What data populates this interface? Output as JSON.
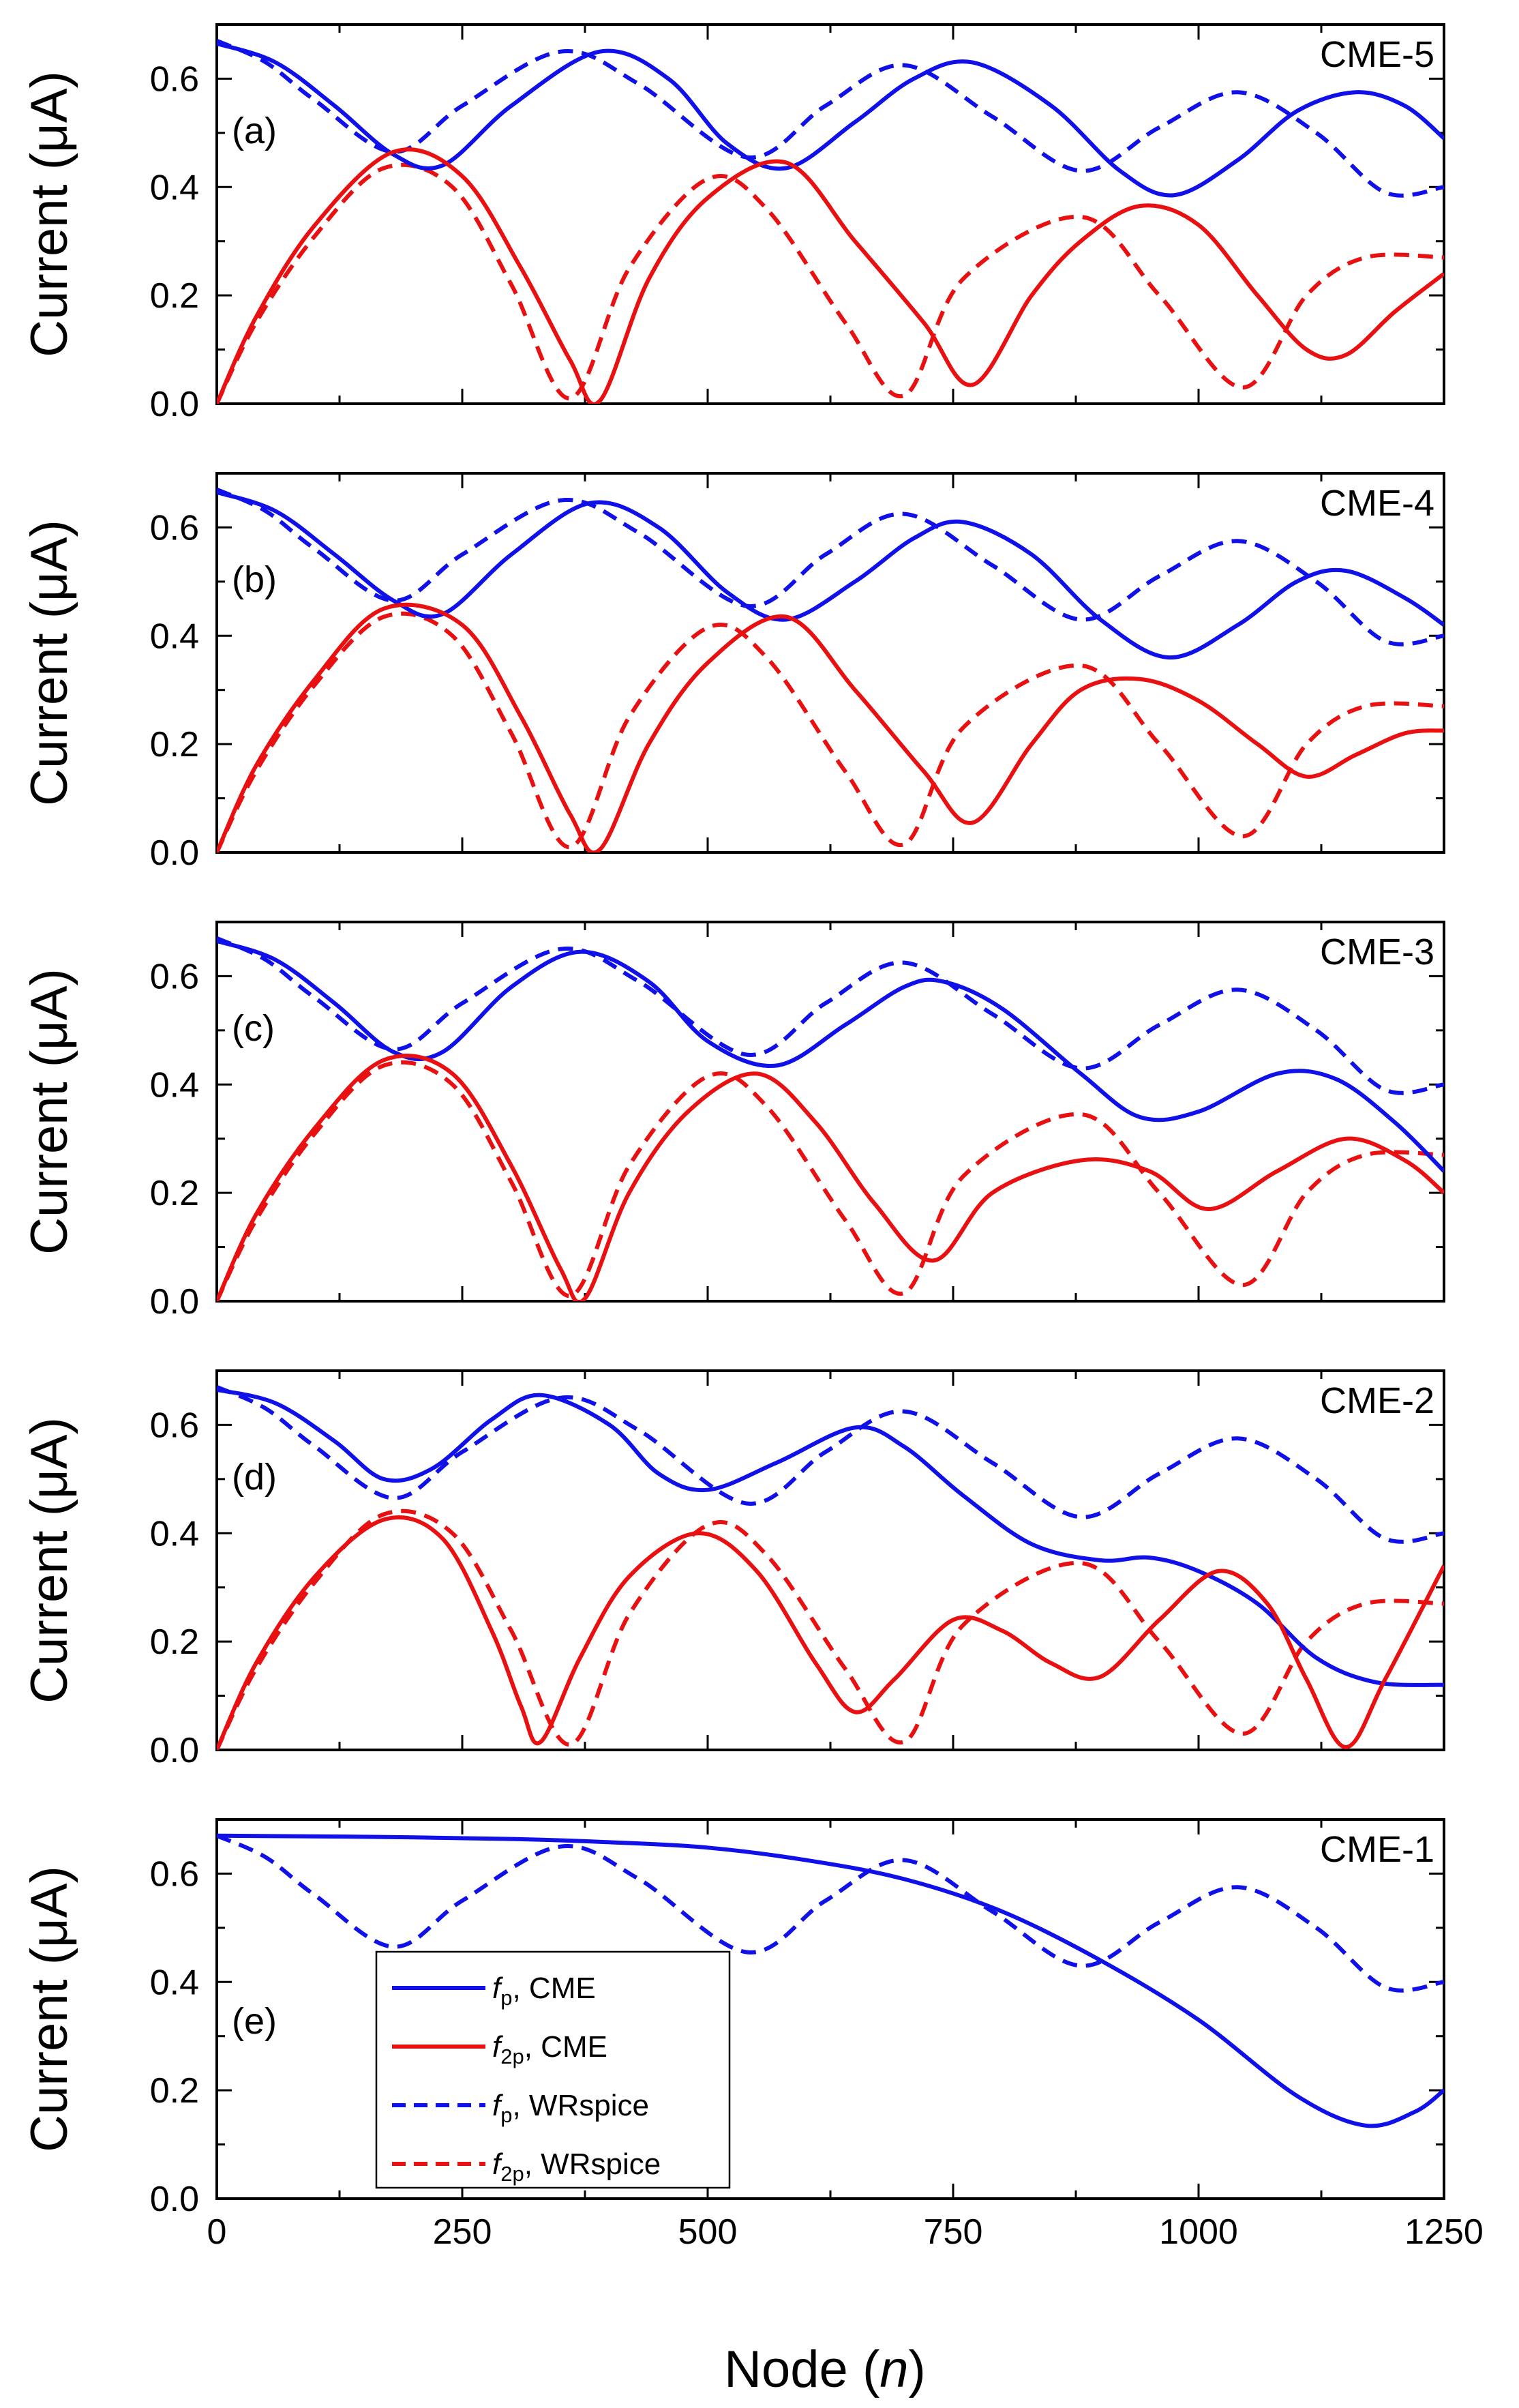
{
  "chart_data": {
    "type": "line",
    "xlabel": "Node (n)",
    "xlabel_main": "Node (",
    "xlabel_var": "n",
    "xlabel_close": ")",
    "ylabel": "Current (μA)",
    "xlim": [
      0,
      1250
    ],
    "ylim": [
      0,
      0.7
    ],
    "xticks": [
      "0",
      "250",
      "500",
      "750",
      "1000",
      "1250"
    ],
    "yticks": [
      "0.0",
      "0.2",
      "0.4",
      "0.6"
    ],
    "legend": [
      {
        "var": "f",
        "sub": "p",
        "rest": ", CME",
        "color": "#1010e8",
        "dash": false
      },
      {
        "var": "f",
        "sub": "2p",
        "rest": ", CME",
        "color": "#e81010",
        "dash": false
      },
      {
        "var": "f",
        "sub": "p",
        "rest": ", WRspice",
        "color": "#1010e8",
        "dash": true
      },
      {
        "var": "f",
        "sub": "2p",
        "rest": ", WRspice",
        "color": "#e81010",
        "dash": true
      }
    ],
    "reference": {
      "fp_wrspice": {
        "x": [
          0,
          50,
          100,
          180,
          250,
          350,
          430,
          540,
          620,
          700,
          790,
          880,
          960,
          1040,
          1120,
          1190,
          1250
        ],
        "y": [
          0.67,
          0.63,
          0.56,
          0.465,
          0.55,
          0.65,
          0.59,
          0.455,
          0.55,
          0.625,
          0.53,
          0.43,
          0.51,
          0.575,
          0.5,
          0.39,
          0.4
        ]
      },
      "f2p_wrspice": {
        "x": [
          0,
          40,
          100,
          170,
          240,
          300,
          360,
          420,
          500,
          560,
          640,
          700,
          760,
          880,
          960,
          1045,
          1110,
          1170,
          1250
        ],
        "y": [
          0.0,
          0.15,
          0.31,
          0.435,
          0.4,
          0.22,
          0.01,
          0.25,
          0.415,
          0.36,
          0.15,
          0.015,
          0.23,
          0.345,
          0.2,
          0.03,
          0.2,
          0.27,
          0.27
        ]
      }
    },
    "panels": [
      {
        "label": "CME-5",
        "tag": "(a)",
        "series": [
          {
            "name": "fp, CME",
            "x": [
              0,
              60,
              120,
              180,
              230,
              300,
              390,
              460,
              520,
              580,
              650,
              710,
              770,
              850,
              920,
              975,
              1040,
              1100,
              1160,
              1210,
              1250
            ],
            "y": [
              0.665,
              0.63,
              0.55,
              0.46,
              0.44,
              0.55,
              0.65,
              0.6,
              0.48,
              0.435,
              0.52,
              0.6,
              0.63,
              0.55,
              0.43,
              0.385,
              0.45,
              0.54,
              0.575,
              0.55,
              0.49
            ]
          },
          {
            "name": "f2p, CME",
            "x": [
              0,
              40,
              100,
              180,
              250,
              310,
              360,
              390,
              440,
              500,
              580,
              650,
              720,
              770,
              830,
              880,
              940,
              1000,
              1060,
              1110,
              1150,
              1200,
              1250
            ],
            "y": [
              0.0,
              0.16,
              0.33,
              0.465,
              0.42,
              0.25,
              0.08,
              0.005,
              0.23,
              0.38,
              0.445,
              0.3,
              0.15,
              0.035,
              0.2,
              0.3,
              0.365,
              0.33,
              0.2,
              0.1,
              0.09,
              0.17,
              0.24
            ]
          }
        ]
      },
      {
        "label": "CME-4",
        "tag": "(b)",
        "series": [
          {
            "name": "fp, CME",
            "x": [
              0,
              60,
              120,
              180,
              230,
              300,
              380,
              450,
              520,
              580,
              650,
              710,
              760,
              830,
              900,
              970,
              1040,
              1100,
              1150,
              1210,
              1250
            ],
            "y": [
              0.665,
              0.63,
              0.55,
              0.465,
              0.44,
              0.55,
              0.645,
              0.6,
              0.48,
              0.43,
              0.5,
              0.58,
              0.61,
              0.55,
              0.43,
              0.36,
              0.42,
              0.5,
              0.52,
              0.47,
              0.42
            ]
          },
          {
            "name": "f2p, CME",
            "x": [
              0,
              40,
              100,
              170,
              250,
              310,
              360,
              390,
              440,
              500,
              580,
              650,
              720,
              770,
              830,
              880,
              940,
              1000,
              1060,
              1110,
              1160,
              1210,
              1250
            ],
            "y": [
              0.0,
              0.16,
              0.32,
              0.45,
              0.42,
              0.25,
              0.07,
              0.005,
              0.2,
              0.35,
              0.435,
              0.3,
              0.15,
              0.055,
              0.2,
              0.3,
              0.32,
              0.28,
              0.2,
              0.14,
              0.18,
              0.22,
              0.225
            ]
          }
        ]
      },
      {
        "label": "CME-3",
        "tag": "(c)",
        "series": [
          {
            "name": "fp, CME",
            "x": [
              0,
              60,
              120,
              180,
              230,
              300,
              370,
              440,
              500,
              570,
              640,
              700,
              740,
              800,
              880,
              940,
              1000,
              1080,
              1140,
              1200,
              1250
            ],
            "y": [
              0.665,
              0.63,
              0.55,
              0.46,
              0.46,
              0.58,
              0.645,
              0.59,
              0.48,
              0.435,
              0.51,
              0.58,
              0.59,
              0.54,
              0.42,
              0.34,
              0.35,
              0.42,
              0.41,
              0.33,
              0.24
            ]
          },
          {
            "name": "f2p, CME",
            "x": [
              0,
              40,
              100,
              170,
              240,
              300,
              350,
              375,
              420,
              480,
              550,
              610,
              670,
              730,
              790,
              880,
              950,
              1010,
              1080,
              1150,
              1210,
              1250
            ],
            "y": [
              0.0,
              0.16,
              0.32,
              0.445,
              0.42,
              0.25,
              0.06,
              0.005,
              0.2,
              0.35,
              0.42,
              0.33,
              0.18,
              0.075,
              0.2,
              0.26,
              0.24,
              0.17,
              0.24,
              0.3,
              0.26,
              0.2
            ]
          }
        ]
      },
      {
        "label": "CME-2",
        "tag": "(d)",
        "series": [
          {
            "name": "fp, CME",
            "x": [
              0,
              60,
              120,
              170,
              220,
              280,
              330,
              400,
              450,
              500,
              570,
              650,
              700,
              760,
              830,
              900,
              950,
              1000,
              1060,
              1120,
              1180,
              1250
            ],
            "y": [
              0.665,
              0.64,
              0.57,
              0.5,
              0.52,
              0.61,
              0.655,
              0.6,
              0.51,
              0.48,
              0.53,
              0.595,
              0.56,
              0.47,
              0.38,
              0.35,
              0.355,
              0.33,
              0.27,
              0.17,
              0.125,
              0.12
            ]
          },
          {
            "name": "f2p, CME",
            "x": [
              0,
              40,
              100,
              170,
              230,
              280,
              310,
              330,
              370,
              420,
              490,
              550,
              610,
              650,
              690,
              750,
              800,
              850,
              900,
              960,
              1020,
              1070,
              1110,
              1150,
              1190,
              1250
            ],
            "y": [
              0.0,
              0.16,
              0.32,
              0.425,
              0.39,
              0.22,
              0.08,
              0.015,
              0.17,
              0.32,
              0.4,
              0.33,
              0.16,
              0.07,
              0.13,
              0.24,
              0.22,
              0.16,
              0.135,
              0.24,
              0.33,
              0.27,
              0.13,
              0.005,
              0.13,
              0.34
            ]
          }
        ]
      },
      {
        "label": "CME-1",
        "tag": "(e)",
        "series": [
          {
            "name": "fp, CME",
            "x": [
              0,
              150,
              300,
              400,
              500,
              600,
              700,
              800,
              900,
              1000,
              1100,
              1170,
              1220,
              1250
            ],
            "y": [
              0.67,
              0.668,
              0.664,
              0.658,
              0.648,
              0.625,
              0.59,
              0.53,
              0.44,
              0.33,
              0.19,
              0.135,
              0.16,
              0.2
            ]
          }
        ]
      }
    ]
  }
}
